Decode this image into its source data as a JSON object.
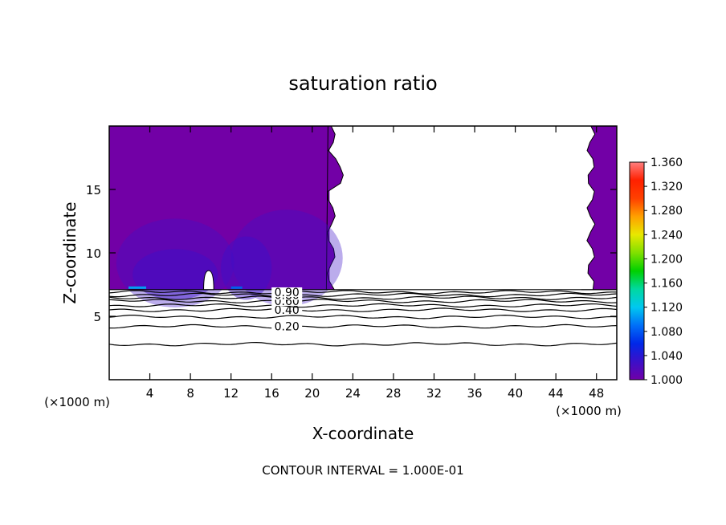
{
  "chart_data": {
    "type": "heatmap",
    "title": "saturation ratio",
    "xlabel": "X-coordinate",
    "ylabel": "Z-coordinate",
    "x_unit": "(×1000 m)",
    "x_unit_right": "(×1000 m)",
    "footer": "CONTOUR INTERVAL = 1.000E-01",
    "xlim": [
      0,
      50
    ],
    "ylim": [
      0,
      20
    ],
    "x_ticks": [
      4,
      8,
      12,
      16,
      20,
      24,
      28,
      32,
      36,
      40,
      44,
      48
    ],
    "y_ticks": [
      5,
      10,
      15
    ],
    "colorbar": {
      "min": 1.0,
      "max": 1.36,
      "labels": [
        "1.360",
        "1.320",
        "1.280",
        "1.240",
        "1.200",
        "1.160",
        "1.120",
        "1.080",
        "1.040",
        "1.000"
      ],
      "colors": [
        "#7000a8",
        "#3c10c8",
        "#0028e8",
        "#0070f8",
        "#00c8f0",
        "#00d8a0",
        "#00d000",
        "#80e000",
        "#e8e800",
        "#ffa000",
        "#ff4000",
        "#ff2000",
        "#ff8080"
      ]
    },
    "fill_color": "#7200a6",
    "contours": [
      {
        "level": 0.1,
        "z": 2.8,
        "label": ""
      },
      {
        "level": 0.2,
        "z": 4.2,
        "label": "0.20"
      },
      {
        "level": 0.3,
        "z": 4.95,
        "label": ""
      },
      {
        "level": 0.4,
        "z": 5.5,
        "label": "0.40"
      },
      {
        "level": 0.5,
        "z": 5.85,
        "label": ""
      },
      {
        "level": 0.6,
        "z": 6.2,
        "label": "0.60"
      },
      {
        "level": 0.7,
        "z": 6.45,
        "label": ""
      },
      {
        "level": 0.8,
        "z": 6.68,
        "label": "0.80"
      },
      {
        "level": 0.9,
        "z": 6.9,
        "label": "0.90"
      }
    ],
    "contour_label_x": 17.5,
    "saturated_region_base_z": 7.1,
    "cloud_free_region": {
      "x_start": 22.5,
      "x_end": 46.5,
      "z_min": 7.1
    }
  }
}
